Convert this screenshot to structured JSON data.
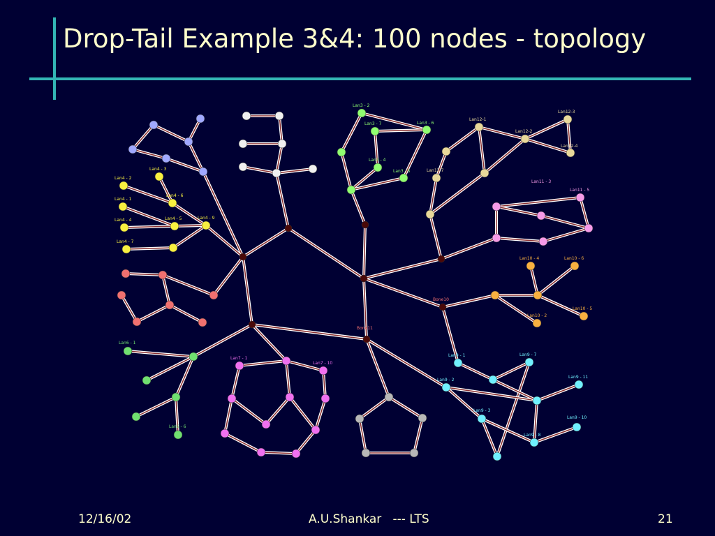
{
  "header": {
    "title": "Drop-Tail Example 3&4: 100 nodes - topology"
  },
  "diagram": {
    "labels": [
      "Lan3 - 2",
      "Lan3 - 7",
      "Lan3 - 6",
      "Lan3 - 4",
      "Lan3 - 5",
      "Lan12-1",
      "Lan12-3",
      "Lan12-2",
      "Lan12-4",
      "Lan12-7",
      "Lan4 - 3",
      "Lan4 - 2",
      "Lan4 - 6",
      "Lan4 - 1",
      "Lan4 - 4",
      "Lan4 - 5",
      "Lan4 - 9",
      "Lan4 - 7",
      "Lan11 - 3",
      "Lan11 - 5",
      "Lan10 - 4",
      "Lan10 - 6",
      "Lan10 - 5",
      "Lan10 - 2",
      "Bone10",
      "Bone11",
      "Lan6 - 1",
      "Lan6 - 6",
      "Lan9 - 1",
      "Lan9 - 7",
      "Lan9 - 2",
      "Lan9 - 11",
      "Lan9 - 3",
      "Lan9 - 10",
      "Lan9 - 8",
      "Lan7 - 1",
      "Lan7 - 10"
    ]
  },
  "footer": {
    "date": "12/16/02",
    "author": "A.U.Shankar   --- LTS",
    "page": "21"
  }
}
